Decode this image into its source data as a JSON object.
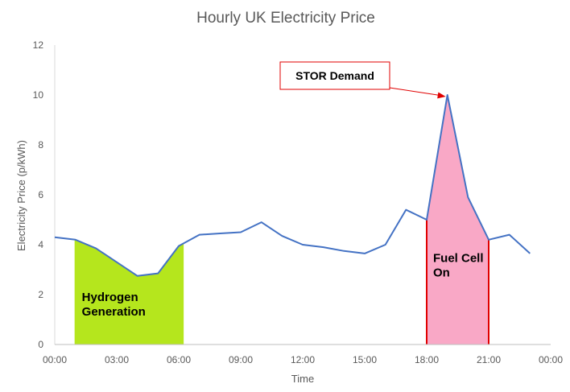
{
  "chart_data": {
    "type": "line",
    "title": "Hourly UK Electricity Price",
    "xlabel": "Time",
    "ylabel": "Electricity Price (p/kWh)",
    "ylim": [
      0,
      12
    ],
    "xlim_hours": [
      0,
      24
    ],
    "y_ticks": [
      0,
      2,
      4,
      6,
      8,
      10,
      12
    ],
    "x_ticks": [
      "00:00",
      "03:00",
      "06:00",
      "09:00",
      "12:00",
      "15:00",
      "18:00",
      "21:00",
      "00:00"
    ],
    "grid": false,
    "legend": "none",
    "series": [
      {
        "color": "#4472C4",
        "hours": [
          0,
          1,
          2,
          3,
          4,
          5,
          6,
          7,
          8,
          9,
          10,
          11,
          12,
          13,
          14,
          15,
          16,
          17,
          18,
          19,
          20,
          21,
          22,
          23
        ],
        "values": [
          4.3,
          4.2,
          3.85,
          3.3,
          2.75,
          2.85,
          3.95,
          4.4,
          4.45,
          4.5,
          4.9,
          4.35,
          4.0,
          3.9,
          3.75,
          3.65,
          4.0,
          5.4,
          5.0,
          10.0,
          5.9,
          4.2,
          4.4,
          3.65
        ]
      }
    ],
    "shaded_regions": [
      {
        "label_lines": [
          "Hydrogen",
          "Generation"
        ],
        "start_hour": 1,
        "end_hour": 6.2,
        "fill": "#b5e61d",
        "edge": "#b5e61d"
      },
      {
        "label_lines": [
          "Fuel Cell",
          "On"
        ],
        "start_hour": 18,
        "end_hour": 21,
        "fill": "#f9a8c6",
        "edge": "#e00000"
      }
    ],
    "annotations": [
      {
        "text": "STOR Demand",
        "target_hour": 19,
        "target_value": 10.0,
        "box_border": "#e00000",
        "arrow_color": "#e00000"
      }
    ]
  }
}
